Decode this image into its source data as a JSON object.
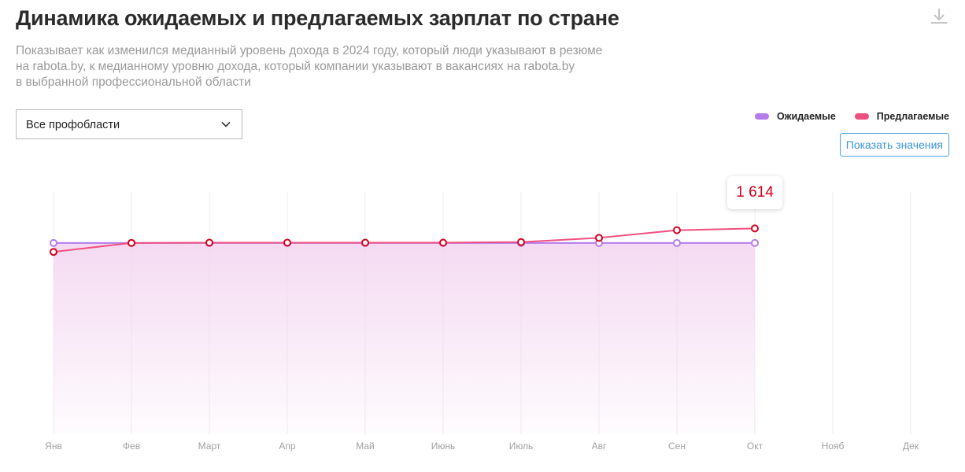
{
  "header": {
    "title": "Динамика ожидаемых и предлагаемых зарплат по стране",
    "subtitle_lines": [
      "Показывает как изменился медианный уровень дохода в 2024 году, который люди указывают в резюме",
      "на rabota.by, к медианному уровню дохода, который компании указывают в вакансиях на rabota.by",
      "в выбранной профессиональной области"
    ],
    "download_icon": "download-icon"
  },
  "filter": {
    "selected": "Все профобласти",
    "icon": "chevron-down-icon"
  },
  "legend": {
    "expected_label": "Ожидаемые",
    "offered_label": "Предлагаемые"
  },
  "controls": {
    "show_values_label": "Показать значения"
  },
  "tooltip": {
    "value": "1 614"
  },
  "colors": {
    "expected": "#b57bea",
    "offered": "#f0507f",
    "point_stroke_offered": "#d5001c",
    "area_fill": "#f3d6f0"
  },
  "chart_data": {
    "type": "line",
    "categories": [
      "Янв",
      "Фев",
      "Март",
      "Апр",
      "Май",
      "Июнь",
      "Июль",
      "Авг",
      "Сен",
      "Окт",
      "Нояб",
      "Дек"
    ],
    "series": [
      {
        "name": "Ожидаемые",
        "values": [
          1500,
          1500,
          1500,
          1500,
          1500,
          1500,
          1500,
          1500,
          1500,
          1500,
          null,
          null
        ]
      },
      {
        "name": "Предлагаемые",
        "values": [
          1430,
          1500,
          1502,
          1502,
          1502,
          1502,
          1507,
          1540,
          1600,
          1614,
          null,
          null
        ]
      }
    ],
    "ylim": [
      0,
      1900
    ],
    "grid": "vertical",
    "legend_position": "top-right",
    "highlight": {
      "series": "Предлагаемые",
      "category": "Окт",
      "label": "1 614"
    }
  }
}
